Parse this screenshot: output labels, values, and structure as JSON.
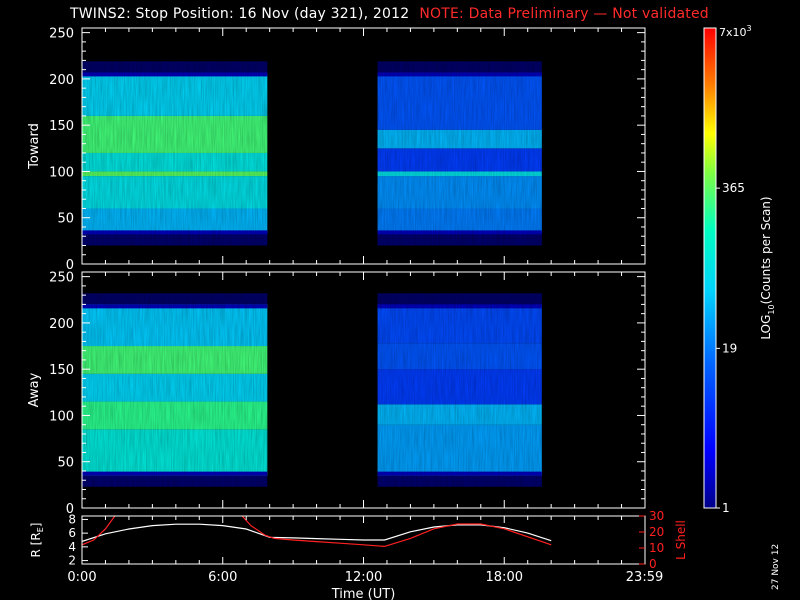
{
  "title": "TWINS2: Stop Position: 16 Nov (day 321), 2012",
  "note": "NOTE: Data Preliminary — Not validated",
  "date_stamp": "27 Nov 12",
  "colors": {
    "background": "#000000",
    "axes": "#ffffff",
    "note": "#ff2a2a",
    "lshell": "#ff2020",
    "radius": "#ffffff"
  },
  "colorbar": {
    "label_parts": [
      "LOG",
      "10",
      "(Counts per Scan)"
    ],
    "ticks": [
      {
        "value": 1,
        "label": "1"
      },
      {
        "value": 19,
        "label": "19"
      },
      {
        "value": 365,
        "label": "365"
      }
    ],
    "max_label": {
      "base": "7x10",
      "exp": "3",
      "value": 7000
    },
    "scale": "log",
    "colormap": "rainbow (dark blue to red)"
  },
  "chart_data": [
    {
      "type": "heatmap",
      "name": "Toward",
      "ylabel": "Toward",
      "xlim": [
        0,
        24
      ],
      "ylim": [
        0,
        255
      ],
      "yticks": [
        0,
        50,
        100,
        150,
        200,
        250
      ],
      "data_time_ranges": [
        [
          0.0,
          7.9
        ],
        [
          12.6,
          19.6
        ]
      ],
      "count_range_y": [
        32,
        207
      ],
      "bands_early": [
        {
          "y": [
            33,
            60
          ],
          "counts": 40
        },
        {
          "y": [
            60,
            95
          ],
          "counts": 80
        },
        {
          "y": [
            95,
            100
          ],
          "counts": 365
        },
        {
          "y": [
            100,
            120
          ],
          "counts": 90
        },
        {
          "y": [
            120,
            160
          ],
          "counts": 300
        },
        {
          "y": [
            160,
            205
          ],
          "counts": 60
        }
      ],
      "bands_late": [
        {
          "y": [
            33,
            60
          ],
          "counts": 20
        },
        {
          "y": [
            60,
            95
          ],
          "counts": 25
        },
        {
          "y": [
            95,
            100
          ],
          "counts": 80
        },
        {
          "y": [
            100,
            125
          ],
          "counts": 8
        },
        {
          "y": [
            125,
            145
          ],
          "counts": 40
        },
        {
          "y": [
            145,
            205
          ],
          "counts": 12
        }
      ]
    },
    {
      "type": "heatmap",
      "name": "Away",
      "ylabel": "Away",
      "xlim": [
        0,
        24
      ],
      "ylim": [
        0,
        255
      ],
      "yticks": [
        0,
        50,
        100,
        150,
        200,
        250
      ],
      "data_time_ranges": [
        [
          0.0,
          7.9
        ],
        [
          12.6,
          19.6
        ]
      ],
      "count_range_y": [
        35,
        220
      ],
      "bands_early": [
        {
          "y": [
            35,
            85
          ],
          "counts": 100
        },
        {
          "y": [
            85,
            115
          ],
          "counts": 250
        },
        {
          "y": [
            115,
            145
          ],
          "counts": 60
        },
        {
          "y": [
            145,
            175
          ],
          "counts": 300
        },
        {
          "y": [
            175,
            220
          ],
          "counts": 50
        }
      ],
      "bands_late": [
        {
          "y": [
            35,
            90
          ],
          "counts": 30
        },
        {
          "y": [
            90,
            112
          ],
          "counts": 40
        },
        {
          "y": [
            112,
            150
          ],
          "counts": 8
        },
        {
          "y": [
            150,
            178
          ],
          "counts": 12
        },
        {
          "y": [
            178,
            220
          ],
          "counts": 10
        }
      ]
    },
    {
      "type": "line",
      "name": "orbit",
      "xlabel": "Time (UT)",
      "xlim": [
        0,
        24
      ],
      "xticks": [
        {
          "value": 0,
          "label": "0:00"
        },
        {
          "value": 6,
          "label": "6:00"
        },
        {
          "value": 12,
          "label": "12:00"
        },
        {
          "value": 18,
          "label": "18:00"
        },
        {
          "value": 23.98,
          "label": "23:59"
        }
      ],
      "left_axis": {
        "label_parts": [
          "R [R",
          "E",
          "]"
        ],
        "ylim": [
          1.5,
          8.5
        ],
        "ticks": [
          2,
          4,
          6,
          8
        ]
      },
      "right_axis": {
        "label": "L Shell",
        "ylim": [
          0,
          30
        ],
        "ticks": [
          0,
          10,
          20,
          30
        ]
      },
      "series": [
        {
          "name": "R",
          "axis": "left",
          "color": "#ffffff",
          "x": [
            0,
            1,
            2,
            3,
            4,
            5,
            6,
            7,
            8,
            9,
            10,
            11,
            12,
            12.9,
            14,
            15,
            16,
            17,
            18,
            19,
            20
          ],
          "y": [
            4.8,
            5.9,
            6.6,
            7.1,
            7.3,
            7.3,
            7.1,
            6.6,
            5.4,
            5.3,
            5.2,
            5.1,
            5.0,
            5.0,
            6.2,
            6.9,
            7.2,
            7.2,
            6.8,
            6.0,
            4.9
          ]
        },
        {
          "name": "L Shell",
          "axis": "right",
          "color": "#ff2020",
          "segments": [
            {
              "x": [
                0,
                0.5,
                1.0,
                1.5
              ],
              "y": [
                12,
                15,
                22,
                32
              ]
            },
            {
              "x": [
                6.7,
                7.2,
                7.8,
                8.2
              ],
              "y": [
                32,
                24,
                18,
                16
              ]
            },
            {
              "x": [
                8.2,
                9,
                10,
                11,
                12,
                12.9,
                14,
                15,
                16,
                17,
                18,
                19,
                20
              ],
              "y": [
                16,
                15,
                14,
                13,
                12,
                11,
                16,
                22,
                25,
                25,
                22,
                17,
                12
              ]
            }
          ]
        }
      ]
    }
  ]
}
